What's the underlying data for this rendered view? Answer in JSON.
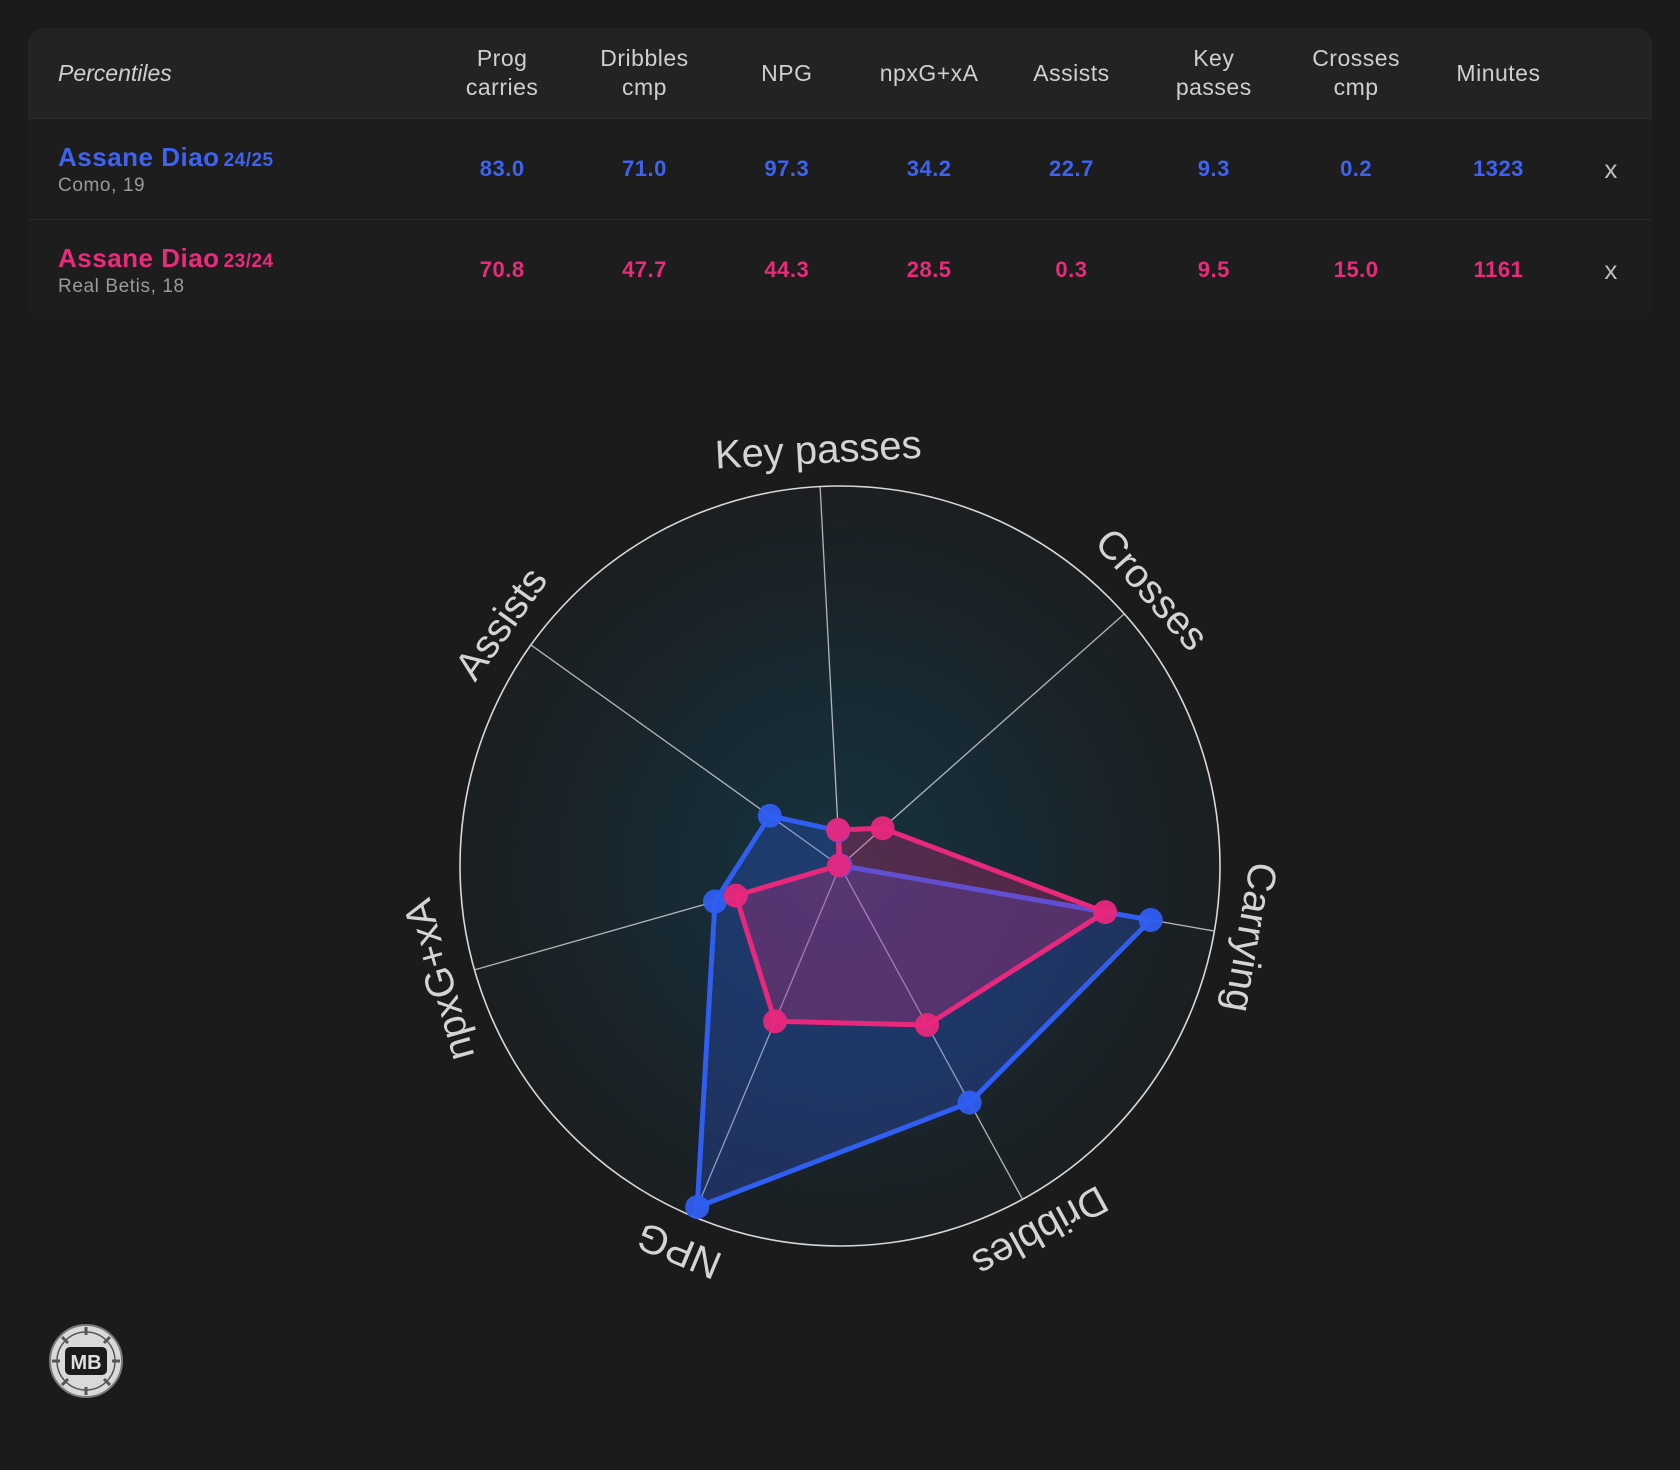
{
  "table": {
    "header_label": "Percentiles",
    "columns": [
      "Prog\ncarries",
      "Dribbles\ncmp",
      "NPG",
      "npxG+xA",
      "Assists",
      "Key\npasses",
      "Crosses\ncmp",
      "Minutes"
    ],
    "remove_label": "x",
    "rows": [
      {
        "name": "Assane Diao",
        "season": "24/25",
        "club": "Como, 19",
        "values": [
          "83.0",
          "71.0",
          "97.3",
          "34.2",
          "22.7",
          "9.3",
          "0.2",
          "1323"
        ]
      },
      {
        "name": "Assane Diao",
        "season": "23/24",
        "club": "Real Betis, 18",
        "values": [
          "70.8",
          "47.7",
          "44.3",
          "28.5",
          "0.3",
          "9.5",
          "15.0",
          "1161"
        ]
      }
    ]
  },
  "chart_data": {
    "type": "radar",
    "axes": [
      "Key passes",
      "Crosses",
      "Carrying",
      "Dribbles",
      "NPG",
      "npxG+xA",
      "Assists"
    ],
    "range": [
      0,
      100
    ],
    "series": [
      {
        "values": [
          9.3,
          0.2,
          83.0,
          71.0,
          97.3,
          34.2,
          22.7
        ],
        "color": "#2f5ef0"
      },
      {
        "values": [
          9.5,
          15.0,
          70.8,
          47.7,
          44.3,
          28.5,
          0.3
        ],
        "color": "#e8287c"
      }
    ]
  },
  "colors": {
    "blue": "#3d63f0",
    "pink": "#ea2a7c",
    "background": "#1b1b1b"
  },
  "logo": {
    "text": "MB"
  }
}
